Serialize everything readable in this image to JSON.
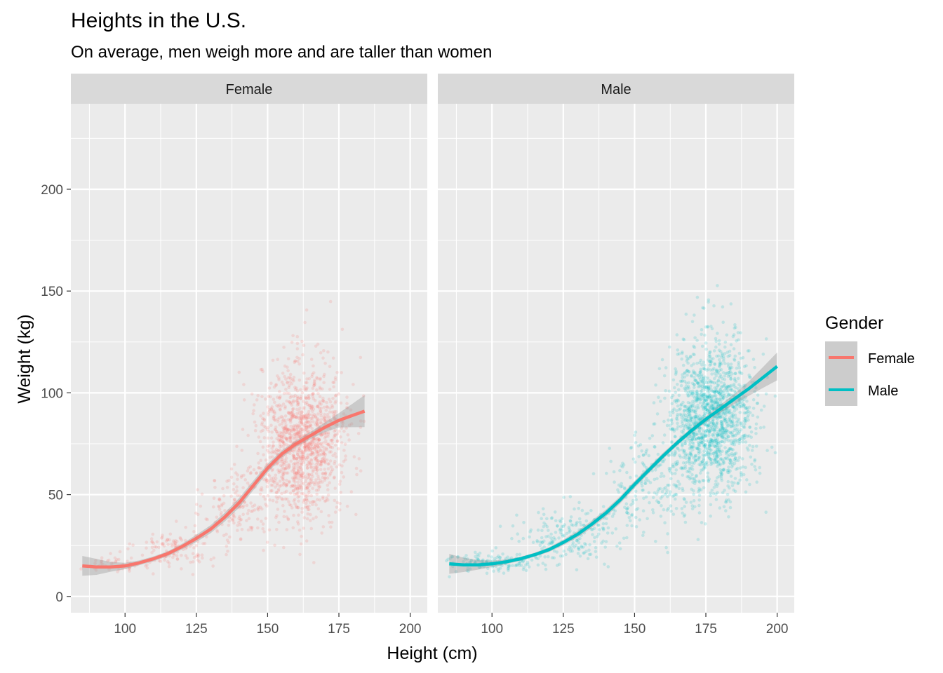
{
  "chart_data": {
    "type": "scatter",
    "title": "Heights in the U.S.",
    "subtitle": "On average, men weigh more and are taller than women",
    "xlabel": "Height (cm)",
    "ylabel": "Weight (kg)",
    "xlim": [
      81,
      206
    ],
    "ylim": [
      -8,
      242
    ],
    "x_ticks": [
      100,
      125,
      150,
      175,
      200
    ],
    "y_ticks": [
      0,
      50,
      100,
      150,
      200
    ],
    "grid": true,
    "facets": [
      "Female",
      "Male"
    ],
    "legend": {
      "title": "Gender",
      "position": "right",
      "entries": [
        "Female",
        "Male"
      ]
    },
    "colors": {
      "Female": "#F8766D",
      "Male": "#00BFC4",
      "panel_bg": "#EBEBEB",
      "strip_bg": "#D9D9D9",
      "band": "#999999"
    },
    "series": [
      {
        "name": "Female",
        "point_cloud": [
          {
            "x_mean": 95,
            "x_sd": 7,
            "y_mean": 16,
            "y_sd": 2,
            "n": 60
          },
          {
            "x_mean": 118,
            "x_sd": 7,
            "y_mean": 24,
            "y_sd": 5,
            "n": 120
          },
          {
            "x_mean": 140,
            "x_sd": 6,
            "y_mean": 44,
            "y_sd": 11,
            "n": 150
          },
          {
            "x_mean": 162,
            "x_sd": 7.5,
            "y_mean": 74,
            "y_sd": 19,
            "n": 1300
          }
        ],
        "smooth": {
          "x": [
            85,
            90,
            95,
            100,
            105,
            110,
            115,
            120,
            125,
            130,
            135,
            140,
            145,
            150,
            155,
            160,
            165,
            170,
            175,
            180,
            184
          ],
          "y": [
            15,
            14.5,
            14.5,
            15,
            16.5,
            18.5,
            21,
            24.5,
            28.5,
            33,
            39,
            46,
            54.5,
            63,
            70,
            75,
            79,
            83,
            86.5,
            89,
            91
          ],
          "se": [
            2.5,
            2,
            1.2,
            0.8,
            0.6,
            0.6,
            0.6,
            0.7,
            0.9,
            1,
            1.1,
            1.2,
            1.2,
            1.1,
            0.9,
            0.8,
            0.9,
            1.2,
            1.8,
            3,
            4
          ]
        }
      },
      {
        "name": "Male",
        "point_cloud": [
          {
            "x_mean": 100,
            "x_sd": 9,
            "y_mean": 17,
            "y_sd": 2.5,
            "n": 160
          },
          {
            "x_mean": 128,
            "x_sd": 9,
            "y_mean": 31,
            "y_sd": 7,
            "n": 200
          },
          {
            "x_mean": 155,
            "x_sd": 7,
            "y_mean": 56,
            "y_sd": 12,
            "n": 200
          },
          {
            "x_mean": 177,
            "x_sd": 7.5,
            "y_mean": 86,
            "y_sd": 18,
            "n": 1500
          }
        ],
        "smooth": {
          "x": [
            85,
            90,
            95,
            100,
            105,
            110,
            115,
            120,
            125,
            130,
            135,
            140,
            145,
            150,
            155,
            160,
            165,
            170,
            175,
            180,
            185,
            190,
            195,
            200
          ],
          "y": [
            16,
            15.5,
            15.5,
            16,
            17,
            18.5,
            20.5,
            23,
            26.5,
            30.5,
            35.5,
            41,
            47.5,
            55,
            62,
            69,
            75.5,
            81.5,
            87,
            92,
            97,
            102,
            107.5,
            113
          ],
          "se": [
            2.5,
            1.8,
            1.2,
            0.8,
            0.6,
            0.5,
            0.5,
            0.6,
            0.7,
            0.8,
            0.9,
            0.9,
            0.9,
            0.9,
            0.8,
            0.8,
            0.7,
            0.7,
            0.8,
            1,
            1.3,
            1.8,
            2.6,
            3.5
          ]
        }
      }
    ]
  }
}
